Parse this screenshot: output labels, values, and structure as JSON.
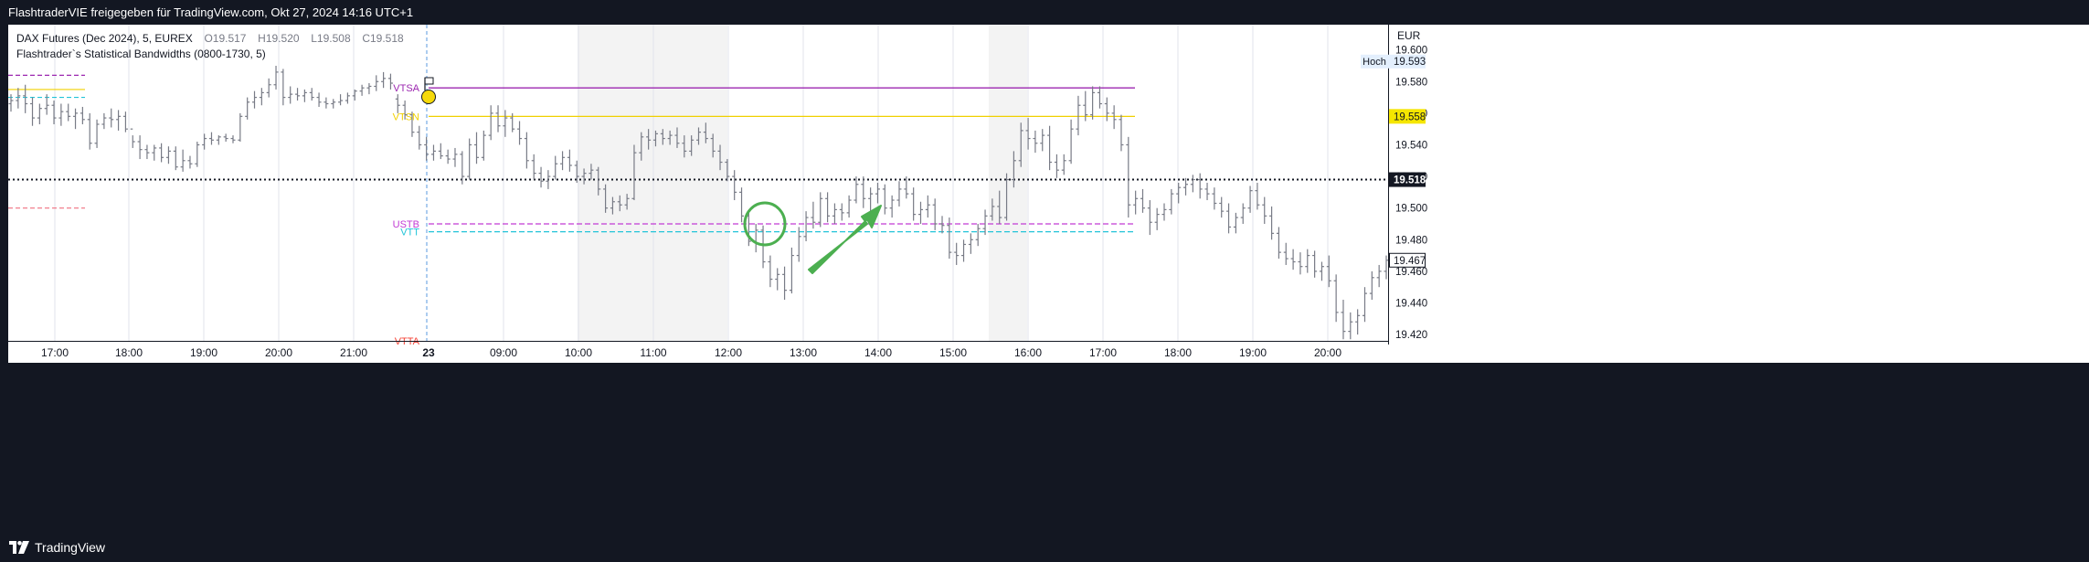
{
  "header": {
    "title": "FlashtraderVIE freigegeben für TradingView.com, Okt 27, 2024 14:16 UTC+1"
  },
  "footer": {
    "logo_text": "TradingView"
  },
  "legend": {
    "symbol": "DAX Futures (Dec 2024), 5, EUREX",
    "open_label": "O",
    "open": "19.517",
    "high_label": "H",
    "high": "19.520",
    "low_label": "L",
    "low": "19.508",
    "close_label": "C",
    "close": "19.518",
    "indicator": "Flashtrader`s Statistical Bandwidths (0800-1730, 5)"
  },
  "colors": {
    "vtsa": "#9c27b0",
    "vtsn": "#f0d000",
    "ustb": "#c23bd4",
    "vtt": "#22c4d8",
    "vtta": "#f44336",
    "ghost_red": "#f07080",
    "arrow": "#4caf50",
    "candle": "#787b86",
    "last_price_line": "#131722",
    "session_shade": "#f3f3f3"
  },
  "chart_data": {
    "type": "ohlc",
    "currency": "EUR",
    "y_ticks": [
      "19.600",
      "19.580",
      "19.560",
      "19.540",
      "19.520",
      "19.500",
      "19.480",
      "19.460",
      "19.440",
      "19.420"
    ],
    "ylim": [
      19.416,
      19.616
    ],
    "x_ticks": [
      "17:00",
      "18:00",
      "19:00",
      "20:00",
      "21:00",
      "23",
      "09:00",
      "10:00",
      "11:00",
      "12:00",
      "13:00",
      "14:00",
      "15:00",
      "16:00",
      "17:00",
      "18:00",
      "19:00",
      "20:00"
    ],
    "x_tick_bold": "23",
    "price_labels": [
      {
        "name": "Hoch",
        "value": "19.593",
        "style": "hoch"
      },
      {
        "name": "vtsn",
        "value": "19.558",
        "style": "yellow"
      },
      {
        "name": "last",
        "value": "19.518",
        "style": "dark"
      },
      {
        "name": "current",
        "value": "19.467",
        "style": "outline"
      }
    ],
    "levels": [
      {
        "label": "VTSA",
        "value": 19.576,
        "style": "solid",
        "color_key": "vtsa"
      },
      {
        "label": "VTSN",
        "value": 19.558,
        "style": "solid",
        "color_key": "vtsn"
      },
      {
        "label": "USTB",
        "value": 19.49,
        "style": "dashed",
        "color_key": "ustb"
      },
      {
        "label": "VTT",
        "value": 19.485,
        "style": "dashed",
        "color_key": "vtt"
      },
      {
        "label": "VTTA",
        "value": 19.416,
        "style": "dashed",
        "color_key": "vtta"
      }
    ],
    "prior_levels": [
      {
        "value": 19.584,
        "style": "dashed",
        "color_key": "vtsa"
      },
      {
        "value": 19.575,
        "style": "solid",
        "color_key": "vtsn"
      },
      {
        "value": 19.57,
        "style": "dashed",
        "color_key": "vtt"
      },
      {
        "value": 19.5,
        "style": "dashed",
        "color_key": "ghost_red"
      }
    ],
    "last_price": 19.518,
    "current_price": 19.467,
    "session_break_label": "23",
    "bars": [
      [
        19.566,
        19.572,
        19.561,
        19.568
      ],
      [
        19.568,
        19.576,
        19.563,
        19.571
      ],
      [
        19.571,
        19.578,
        19.56,
        19.566
      ],
      [
        19.566,
        19.57,
        19.552,
        19.557
      ],
      [
        19.557,
        19.566,
        19.553,
        19.563
      ],
      [
        19.563,
        19.572,
        19.559,
        19.565
      ],
      [
        19.565,
        19.568,
        19.553,
        19.557
      ],
      [
        19.557,
        19.566,
        19.552,
        19.561
      ],
      [
        19.561,
        19.566,
        19.555,
        19.558
      ],
      [
        19.558,
        19.563,
        19.55,
        19.56
      ],
      [
        19.56,
        19.564,
        19.553,
        19.556
      ],
      [
        19.556,
        19.56,
        19.537,
        19.541
      ],
      [
        19.541,
        19.556,
        19.538,
        19.553
      ],
      [
        19.553,
        19.56,
        19.55,
        19.557
      ],
      [
        19.557,
        19.563,
        19.551,
        19.556
      ],
      [
        19.556,
        19.562,
        19.549,
        19.558
      ],
      [
        19.558,
        19.561,
        19.548,
        19.55
      ],
      [
        19.55,
        19.546,
        19.538,
        19.542
      ],
      [
        19.542,
        19.546,
        19.531,
        19.537
      ],
      [
        19.537,
        19.54,
        19.531,
        19.535
      ],
      [
        19.535,
        19.54,
        19.53,
        19.538
      ],
      [
        19.538,
        19.541,
        19.529,
        19.532
      ],
      [
        19.532,
        19.539,
        19.528,
        19.536
      ],
      [
        19.536,
        19.539,
        19.524,
        19.526
      ],
      [
        19.526,
        19.537,
        19.523,
        19.53
      ],
      [
        19.53,
        19.533,
        19.525,
        19.528
      ],
      [
        19.528,
        19.542,
        19.526,
        19.54
      ],
      [
        19.54,
        19.547,
        19.537,
        19.544
      ],
      [
        19.544,
        19.548,
        19.54,
        19.543
      ],
      [
        19.543,
        19.546,
        19.54,
        19.545
      ],
      [
        19.545,
        19.547,
        19.542,
        19.544
      ],
      [
        19.544,
        19.546,
        19.541,
        19.543
      ],
      [
        19.543,
        19.56,
        19.542,
        19.558
      ],
      [
        19.558,
        19.57,
        19.556,
        19.567
      ],
      [
        19.567,
        19.574,
        19.563,
        19.57
      ],
      [
        19.57,
        19.576,
        19.565,
        19.573
      ],
      [
        19.573,
        19.582,
        19.57,
        19.578
      ],
      [
        19.578,
        19.59,
        19.575,
        19.586
      ],
      [
        19.586,
        19.588,
        19.565,
        19.57
      ],
      [
        19.57,
        19.577,
        19.566,
        19.572
      ],
      [
        19.572,
        19.576,
        19.568,
        19.571
      ],
      [
        19.571,
        19.575,
        19.567,
        19.573
      ],
      [
        19.573,
        19.576,
        19.568,
        19.57
      ],
      [
        19.57,
        19.573,
        19.564,
        19.567
      ],
      [
        19.567,
        19.57,
        19.563,
        19.566
      ],
      [
        19.566,
        19.569,
        19.563,
        19.567
      ],
      [
        19.567,
        19.572,
        19.565,
        19.568
      ],
      [
        19.568,
        19.573,
        19.566,
        19.571
      ],
      [
        19.571,
        19.575,
        19.568,
        19.574
      ],
      [
        19.574,
        19.578,
        19.571,
        19.576
      ],
      [
        19.576,
        19.579,
        19.572,
        19.577
      ],
      [
        19.577,
        19.584,
        19.574,
        19.58
      ],
      [
        19.58,
        19.586,
        19.576,
        19.582
      ],
      [
        19.582,
        19.585,
        19.575,
        19.579
      ],
      [
        19.569,
        19.572,
        19.56,
        19.565
      ],
      [
        19.565,
        19.568,
        19.556,
        19.559
      ],
      [
        19.559,
        19.561,
        19.545,
        19.548
      ],
      [
        19.548,
        19.552,
        19.537,
        19.54
      ],
      [
        19.54,
        19.545,
        19.53,
        19.534
      ],
      [
        19.534,
        19.54,
        19.53,
        19.536
      ],
      [
        19.536,
        19.541,
        19.531,
        19.533
      ],
      [
        19.533,
        19.537,
        19.528,
        19.531
      ],
      [
        19.531,
        19.538,
        19.526,
        19.534
      ],
      [
        19.534,
        19.536,
        19.515,
        19.52
      ],
      [
        19.52,
        19.544,
        19.518,
        19.54
      ],
      [
        19.54,
        19.548,
        19.528,
        19.532
      ],
      [
        19.532,
        19.549,
        19.53,
        19.546
      ],
      [
        19.546,
        19.565,
        19.543,
        19.56
      ],
      [
        19.56,
        19.565,
        19.548,
        19.552
      ],
      [
        19.552,
        19.562,
        19.545,
        19.557
      ],
      [
        19.557,
        19.56,
        19.548,
        19.55
      ],
      [
        19.55,
        19.555,
        19.54,
        19.544
      ],
      [
        19.544,
        19.548,
        19.525,
        19.53
      ],
      [
        19.53,
        19.534,
        19.518,
        19.522
      ],
      [
        19.522,
        19.526,
        19.513,
        19.517
      ],
      [
        19.517,
        19.524,
        19.512,
        19.52
      ],
      [
        19.52,
        19.533,
        19.518,
        19.528
      ],
      [
        19.528,
        19.536,
        19.524,
        19.532
      ],
      [
        19.532,
        19.537,
        19.523,
        19.527
      ],
      [
        19.527,
        19.53,
        19.516,
        19.52
      ],
      [
        19.52,
        19.525,
        19.515,
        19.522
      ],
      [
        19.522,
        19.528,
        19.518,
        19.524
      ],
      [
        19.524,
        19.526,
        19.508,
        19.512
      ],
      [
        19.512,
        19.515,
        19.497,
        19.5
      ],
      [
        19.5,
        19.507,
        19.496,
        19.504
      ],
      [
        19.504,
        19.508,
        19.498,
        19.502
      ],
      [
        19.502,
        19.509,
        19.499,
        19.506
      ],
      [
        19.506,
        19.54,
        19.505,
        19.535
      ],
      [
        19.535,
        19.548,
        19.53,
        19.545
      ],
      [
        19.545,
        19.55,
        19.537,
        19.543
      ],
      [
        19.543,
        19.549,
        19.539,
        19.547
      ],
      [
        19.547,
        19.55,
        19.54,
        19.544
      ],
      [
        19.544,
        19.549,
        19.54,
        19.546
      ],
      [
        19.546,
        19.551,
        19.538,
        19.541
      ],
      [
        19.541,
        19.546,
        19.532,
        19.536
      ],
      [
        19.536,
        19.546,
        19.533,
        19.543
      ],
      [
        19.543,
        19.551,
        19.54,
        19.548
      ],
      [
        19.548,
        19.554,
        19.541,
        19.544
      ],
      [
        19.544,
        19.547,
        19.532,
        19.536
      ],
      [
        19.536,
        19.54,
        19.524,
        19.529
      ],
      [
        19.529,
        19.531,
        19.517,
        19.52
      ],
      [
        19.52,
        19.524,
        19.505,
        19.51
      ],
      [
        19.51,
        19.513,
        19.491,
        19.495
      ],
      [
        19.495,
        19.498,
        19.476,
        19.479
      ],
      [
        19.479,
        19.49,
        19.472,
        19.486
      ],
      [
        19.486,
        19.489,
        19.462,
        19.466
      ],
      [
        19.466,
        19.47,
        19.45,
        19.455
      ],
      [
        19.455,
        19.462,
        19.448,
        19.458
      ],
      [
        19.458,
        19.463,
        19.442,
        19.448
      ],
      [
        19.448,
        19.475,
        19.446,
        19.47
      ],
      [
        19.47,
        19.488,
        19.466,
        19.482
      ],
      [
        19.482,
        19.498,
        19.479,
        19.494
      ],
      [
        19.494,
        19.504,
        19.487,
        19.491
      ],
      [
        19.491,
        19.51,
        19.488,
        19.506
      ],
      [
        19.506,
        19.51,
        19.491,
        19.495
      ],
      [
        19.495,
        19.503,
        19.49,
        19.499
      ],
      [
        19.499,
        19.503,
        19.492,
        19.497
      ],
      [
        19.497,
        19.508,
        19.494,
        19.505
      ],
      [
        19.505,
        19.52,
        19.503,
        19.515
      ],
      [
        19.515,
        19.52,
        19.5,
        19.506
      ],
      [
        19.506,
        19.513,
        19.498,
        19.509
      ],
      [
        19.509,
        19.516,
        19.503,
        19.512
      ],
      [
        19.512,
        19.515,
        19.496,
        19.5
      ],
      [
        19.5,
        19.508,
        19.494,
        19.505
      ],
      [
        19.505,
        19.517,
        19.501,
        19.512
      ],
      [
        19.512,
        19.52,
        19.506,
        19.509
      ],
      [
        19.509,
        19.513,
        19.492,
        19.496
      ],
      [
        19.496,
        19.504,
        19.49,
        19.499
      ],
      [
        19.499,
        19.508,
        19.494,
        19.502
      ],
      [
        19.502,
        19.506,
        19.486,
        19.49
      ],
      [
        19.49,
        19.495,
        19.484,
        19.489
      ],
      [
        19.489,
        19.494,
        19.468,
        19.472
      ],
      [
        19.472,
        19.478,
        19.464,
        19.47
      ],
      [
        19.47,
        19.48,
        19.466,
        19.477
      ],
      [
        19.477,
        19.484,
        19.471,
        19.48
      ],
      [
        19.48,
        19.49,
        19.476,
        19.487
      ],
      [
        19.487,
        19.499,
        19.483,
        19.495
      ],
      [
        19.495,
        19.506,
        19.492,
        19.501
      ],
      [
        19.501,
        19.511,
        19.49,
        19.494
      ],
      [
        19.494,
        19.522,
        19.492,
        19.518
      ],
      [
        19.518,
        19.536,
        19.513,
        19.53
      ],
      [
        19.53,
        19.554,
        19.526,
        19.549
      ],
      [
        19.549,
        19.557,
        19.537,
        19.544
      ],
      [
        19.544,
        19.549,
        19.535,
        19.541
      ],
      [
        19.541,
        19.55,
        19.536,
        19.546
      ],
      [
        19.546,
        19.552,
        19.524,
        19.529
      ],
      [
        19.529,
        19.534,
        19.519,
        19.524
      ],
      [
        19.524,
        19.534,
        19.521,
        19.53
      ],
      [
        19.53,
        19.556,
        19.528,
        19.55
      ],
      [
        19.55,
        19.571,
        19.546,
        19.565
      ],
      [
        19.565,
        19.574,
        19.555,
        19.559
      ],
      [
        19.559,
        19.577,
        19.556,
        19.573
      ],
      [
        19.573,
        19.577,
        19.563,
        19.566
      ],
      [
        19.566,
        19.57,
        19.555,
        19.56
      ],
      [
        19.56,
        19.565,
        19.55,
        19.556
      ],
      [
        19.556,
        19.559,
        19.536,
        19.54
      ],
      [
        19.54,
        19.545,
        19.494,
        19.502
      ],
      [
        19.502,
        19.511,
        19.496,
        19.506
      ],
      [
        19.506,
        19.512,
        19.497,
        19.5
      ],
      [
        19.5,
        19.505,
        19.483,
        19.491
      ],
      [
        19.491,
        19.5,
        19.486,
        19.496
      ],
      [
        19.496,
        19.503,
        19.492,
        19.499
      ],
      [
        19.499,
        19.512,
        19.496,
        19.509
      ],
      [
        19.509,
        19.516,
        19.503,
        19.513
      ],
      [
        19.513,
        19.519,
        19.508,
        19.515
      ],
      [
        19.515,
        19.521,
        19.51,
        19.518
      ],
      [
        19.518,
        19.522,
        19.506,
        19.512
      ],
      [
        19.512,
        19.516,
        19.505,
        19.509
      ],
      [
        19.509,
        19.513,
        19.499,
        19.503
      ],
      [
        19.503,
        19.507,
        19.494,
        19.498
      ],
      [
        19.498,
        19.503,
        19.484,
        19.488
      ],
      [
        19.488,
        19.497,
        19.484,
        19.494
      ],
      [
        19.494,
        19.503,
        19.49,
        19.5
      ],
      [
        19.5,
        19.514,
        19.497,
        19.511
      ],
      [
        19.511,
        19.516,
        19.499,
        19.502
      ],
      [
        19.502,
        19.507,
        19.49,
        19.495
      ],
      [
        19.495,
        19.501,
        19.48,
        19.484
      ],
      [
        19.484,
        19.488,
        19.468,
        19.472
      ],
      [
        19.472,
        19.478,
        19.464,
        19.468
      ],
      [
        19.468,
        19.474,
        19.461,
        19.466
      ],
      [
        19.466,
        19.472,
        19.458,
        19.463
      ],
      [
        19.463,
        19.474,
        19.459,
        19.47
      ],
      [
        19.47,
        19.473,
        19.456,
        19.46
      ],
      [
        19.46,
        19.466,
        19.454,
        19.463
      ],
      [
        19.463,
        19.47,
        19.45,
        19.454
      ],
      [
        19.454,
        19.458,
        19.428,
        19.434
      ],
      [
        19.434,
        19.442,
        19.417,
        19.422
      ],
      [
        19.422,
        19.434,
        19.417,
        19.428
      ],
      [
        19.428,
        19.436,
        19.42,
        19.432
      ],
      [
        19.432,
        19.45,
        19.428,
        19.446
      ],
      [
        19.446,
        19.46,
        19.442,
        19.456
      ],
      [
        19.456,
        19.464,
        19.45,
        19.46
      ],
      [
        19.46,
        19.47,
        19.455,
        19.467
      ]
    ]
  }
}
